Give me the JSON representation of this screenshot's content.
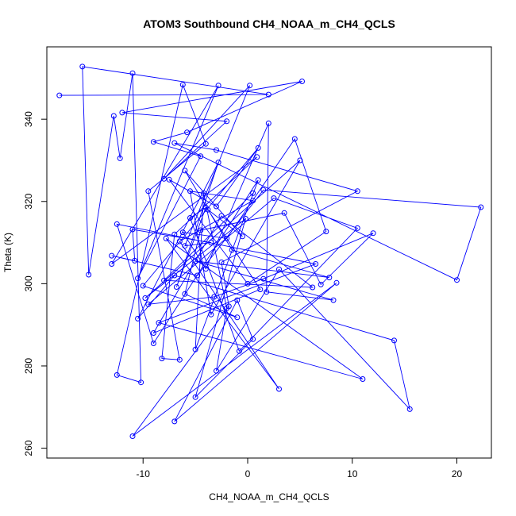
{
  "chart_data": {
    "type": "line",
    "title": "ATOM3 Southbound CH4_NOAA_m_CH4_QCLS",
    "xlabel": "CH4_NOAA_m_CH4_QCLS",
    "ylabel": "Theta (K)",
    "xlim": [
      -19.2,
      23.3
    ],
    "ylim": [
      257.6,
      357.6
    ],
    "xticks": [
      -10,
      0,
      10,
      20
    ],
    "yticks": [
      260,
      280,
      300,
      320,
      340
    ],
    "series_color": "#0000ff",
    "markers": "open-circle",
    "grid": false,
    "series": [
      {
        "x": [
          -18.0,
          2.0,
          -15.8,
          -15.2,
          -12.8,
          -12.2,
          -11.0,
          -10.2,
          -12.5,
          -6.2,
          -4.0,
          -9.5,
          -6.5,
          -8.2,
          -7.0,
          0.9,
          -13.0,
          -2.8,
          -10.5,
          -4.5,
          -9.0,
          -5.8,
          5.2,
          -12.0,
          -2.0,
          -8.0,
          0.2,
          -6.0,
          -3.5,
          -11.0,
          -10.8,
          -13.0,
          -4.8,
          1.5,
          22.3,
          20.0,
          -7.0,
          -3.0,
          10.5,
          -2.5,
          -1.8,
          -11.0,
          8.5,
          -7.0,
          -1.0,
          0.5,
          -5.0,
          -0.2,
          -9.8,
          5.0,
          -3.5,
          -5.5,
          0.5,
          -6.5,
          3.0,
          -7.8,
          11.0,
          -8.5,
          6.5,
          -12.5,
          -9.0,
          1.0,
          -5.0,
          -4.2,
          -2.0,
          -3.0,
          3.0,
          15.5,
          14.0,
          -7.0,
          -10.5,
          -2.8,
          -6.8,
          -4.0,
          -5.5,
          -0.8,
          10.5,
          2.5,
          -9.5,
          -3.2,
          1.5,
          12.0,
          7.0,
          3.5,
          -4.5,
          -6.0,
          -1.0,
          -10.0,
          1.0,
          -3.0,
          -7.5,
          0.0,
          7.5,
          4.5,
          -2.0,
          -6.2,
          -4.0,
          2.0,
          1.8,
          8.2,
          -5.0,
          7.8,
          -1.5,
          -6.0,
          -0.5,
          -3.8,
          1.2,
          -9.0,
          -2.5,
          6.2,
          -8.0,
          0.5
        ],
        "y": [
          345.8,
          346.0,
          352.8,
          302.2,
          340.8,
          330.5,
          351.2,
          276.0,
          277.8,
          348.4,
          334.0,
          322.5,
          281.5,
          281.8,
          312.0,
          330.8,
          304.8,
          348.2,
          301.3,
          331.0,
          334.5,
          336.8,
          349.2,
          341.6,
          339.5,
          325.5,
          348.2,
          309.2,
          310.0,
          313.2,
          305.6,
          306.8,
          302.0,
          322.8,
          318.6,
          300.9,
          334.2,
          332.5,
          322.5,
          305.2,
          294.5,
          262.9,
          300.2,
          266.5,
          296.0,
          286.5,
          272.4,
          315.8,
          296.5,
          330.0,
          292.5,
          322.5,
          320.2,
          310.3,
          274.4,
          311.0,
          276.8,
          290.5,
          304.8,
          314.5,
          285.5,
          325.2,
          284.0,
          322.0,
          294.0,
          278.8,
          303.5,
          269.5,
          286.2,
          302.0,
          291.5,
          329.5,
          299.2,
          318.5,
          316.0,
          283.6,
          313.5,
          320.8,
          295.0,
          296.8,
          301.2,
          312.3,
          299.8,
          317.2,
          313.0,
          297.5,
          291.8,
          299.5,
          333.0,
          318.8,
          325.3,
          300.0,
          312.7,
          335.2,
          311.0,
          312.5,
          303.6,
          339.0,
          298.0,
          296.0,
          305.5,
          301.5,
          308.2,
          327.5,
          311.5,
          318.0,
          298.6,
          288.0,
          316.5,
          299.1,
          300.8,
          322.0
        ]
      }
    ]
  }
}
